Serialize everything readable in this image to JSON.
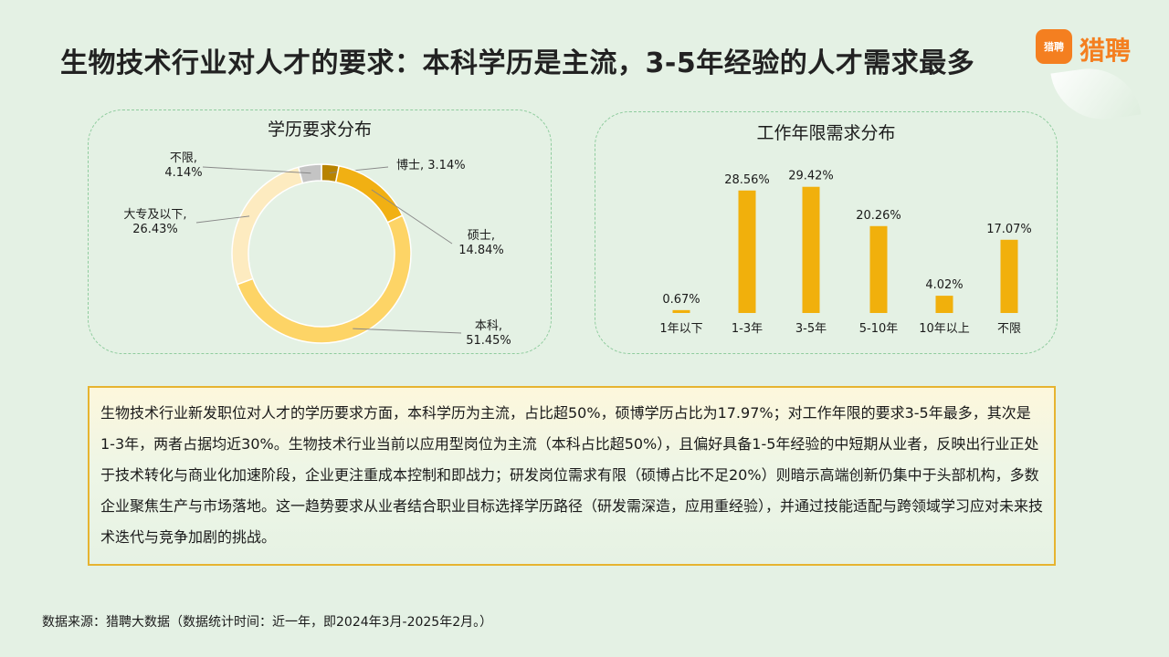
{
  "page": {
    "title": "生物技术行业对人才的要求：本科学历是主流，3-5年经验的人才需求最多",
    "logo_badge": "猎聘",
    "logo_text": "猎聘",
    "summary": "生物技术行业新发职位对人才的学历要求方面，本科学历为主流，占比超50%，硕博学历占比为17.97%；对工作年限的要求3-5年最多，其次是1-3年，两者占据均近30%。生物技术行业当前以应用型岗位为主流（本科占比超50%），且偏好具备1-5年经验的中短期从业者，反映出行业正处于技术转化与商业化加速阶段，企业更注重成本控制和即战力；研发岗位需求有限（硕博占比不足20%）则暗示高端创新仍集中于头部机构，多数企业聚焦生产与市场落地。这一趋势要求从业者结合职业目标选择学历路径（研发需深造，应用重经验），并通过技能适配与跨领域学习应对未来技术迭代与竞争加剧的挑战。",
    "source": "数据来源：猎聘大数据（数据统计时间：近一年，即2024年3月-2025年2月。）"
  },
  "chart_data": [
    {
      "type": "pie",
      "variant": "donut",
      "title": "学历要求分布",
      "slices": [
        {
          "label": "博士",
          "value": 3.14,
          "display": "博士, 3.14%",
          "color": "#b88300"
        },
        {
          "label": "硕士",
          "value": 14.84,
          "display": "硕士,\n14.84%",
          "color": "#f1b013"
        },
        {
          "label": "本科",
          "value": 51.45,
          "display": "本科,\n51.45%",
          "color": "#fdd466"
        },
        {
          "label": "大专及以下",
          "value": 26.43,
          "display": "大专及以下,\n26.43%",
          "color": "#fdebc0"
        },
        {
          "label": "不限",
          "value": 4.14,
          "display": "不限,\n4.14%",
          "color": "#c4c4c4"
        }
      ]
    },
    {
      "type": "bar",
      "title": "工作年限需求分布",
      "categories": [
        "1年以下",
        "1-3年",
        "3-5年",
        "5-10年",
        "10年以上",
        "不限"
      ],
      "values": [
        0.67,
        28.56,
        29.42,
        20.26,
        4.02,
        17.07
      ],
      "value_labels": [
        "0.67%",
        "28.56%",
        "29.42%",
        "20.26%",
        "4.02%",
        "17.07%"
      ],
      "bar_color": "#f1b00c",
      "ylim": [
        0,
        30
      ],
      "grid": false
    }
  ],
  "colors": {
    "background": "#e4f1e4",
    "panel_border": "#8fcc9e",
    "summary_border": "#e6b430",
    "brand": "#f47f20"
  }
}
